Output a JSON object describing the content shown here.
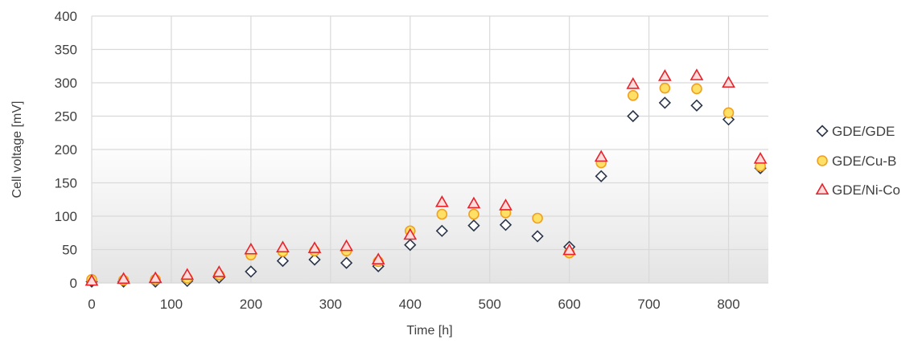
{
  "chart_data": {
    "type": "scatter",
    "xlabel": "Time [h]",
    "ylabel": "Cell voltage [mV]",
    "xlim": [
      0,
      850
    ],
    "ylim": [
      0,
      400
    ],
    "xticks": [
      0,
      100,
      200,
      300,
      400,
      500,
      600,
      700,
      800
    ],
    "yticks": [
      0,
      50,
      100,
      150,
      200,
      250,
      300,
      350,
      400
    ],
    "grid": true,
    "legend_position": "right",
    "series": [
      {
        "name": "GDE/GDE",
        "marker": "diamond",
        "fill": "#ffffff",
        "stroke": "#2b3548",
        "points": [
          [
            0,
            2
          ],
          [
            40,
            2
          ],
          [
            80,
            2
          ],
          [
            120,
            3
          ],
          [
            160,
            8
          ],
          [
            200,
            17
          ],
          [
            240,
            33
          ],
          [
            280,
            35
          ],
          [
            320,
            30
          ],
          [
            360,
            25
          ],
          [
            400,
            57
          ],
          [
            440,
            78
          ],
          [
            480,
            86
          ],
          [
            520,
            87
          ],
          [
            560,
            70
          ],
          [
            600,
            54
          ],
          [
            640,
            160
          ],
          [
            680,
            250
          ],
          [
            720,
            270
          ],
          [
            760,
            266
          ],
          [
            800,
            245
          ],
          [
            840,
            172
          ]
        ]
      },
      {
        "name": "GDE/Cu-B",
        "marker": "circle",
        "fill": "#ffe066",
        "stroke": "#f0a020",
        "points": [
          [
            0,
            5
          ],
          [
            40,
            4
          ],
          [
            80,
            5
          ],
          [
            120,
            7
          ],
          [
            160,
            12
          ],
          [
            200,
            42
          ],
          [
            240,
            47
          ],
          [
            280,
            48
          ],
          [
            320,
            48
          ],
          [
            360,
            32
          ],
          [
            400,
            78
          ],
          [
            440,
            103
          ],
          [
            480,
            103
          ],
          [
            520,
            105
          ],
          [
            560,
            97
          ],
          [
            600,
            45
          ],
          [
            640,
            180
          ],
          [
            680,
            281
          ],
          [
            720,
            292
          ],
          [
            760,
            291
          ],
          [
            800,
            255
          ],
          [
            840,
            175
          ]
        ]
      },
      {
        "name": "GDE/Ni-Co",
        "marker": "triangle",
        "fill": "#ffdcdc",
        "stroke": "#e8222a",
        "points": [
          [
            0,
            3
          ],
          [
            40,
            6
          ],
          [
            80,
            7
          ],
          [
            120,
            12
          ],
          [
            160,
            16
          ],
          [
            200,
            50
          ],
          [
            240,
            53
          ],
          [
            280,
            52
          ],
          [
            320,
            55
          ],
          [
            360,
            35
          ],
          [
            400,
            72
          ],
          [
            440,
            121
          ],
          [
            480,
            119
          ],
          [
            520,
            116
          ],
          [
            600,
            49
          ],
          [
            640,
            189
          ],
          [
            680,
            298
          ],
          [
            720,
            310
          ],
          [
            760,
            311
          ],
          [
            800,
            300
          ],
          [
            840,
            186
          ]
        ]
      }
    ]
  }
}
